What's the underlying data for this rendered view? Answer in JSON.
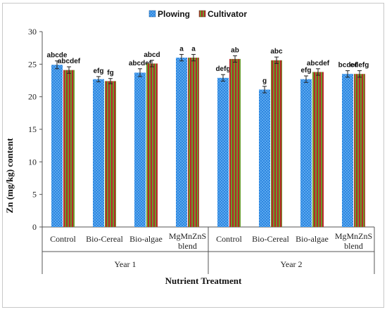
{
  "chart_data": {
    "type": "bar",
    "ylabel": "Zn (mg/kg) content",
    "xlabel": "Nutrient Treatment",
    "ylim": [
      0,
      30
    ],
    "yticks": [
      "0",
      "5",
      "10",
      "15",
      "20",
      "25",
      "30"
    ],
    "grid": false,
    "legend_position": "top",
    "groups": [
      {
        "name": "Year 1",
        "categories": [
          "Control",
          "Bio-Cereal",
          "Bio-algae",
          "MgMnZnS blend"
        ]
      },
      {
        "name": "Year 2",
        "categories": [
          "Control",
          "Bio-Cereal",
          "Bio-algae",
          "MgMnZnS blend"
        ]
      }
    ],
    "series": [
      {
        "name": "Plowing",
        "color": "#2e86de",
        "values": [
          24.9,
          22.7,
          23.7,
          26.0,
          22.9,
          21.1,
          22.7,
          23.5
        ],
        "errors": [
          0.6,
          0.4,
          0.6,
          0.5,
          0.5,
          0.5,
          0.5,
          0.5
        ],
        "labels": [
          "abcde",
          "efg",
          "abcdef",
          "a",
          "defg",
          "g",
          "efg",
          "bcdef"
        ]
      },
      {
        "name": "Cultivator",
        "color": "#8b5a2b",
        "values": [
          24.1,
          22.4,
          25.1,
          26.0,
          25.8,
          25.6,
          23.8,
          23.5
        ],
        "errors": [
          0.5,
          0.4,
          0.5,
          0.5,
          0.5,
          0.5,
          0.5,
          0.5
        ],
        "labels": [
          "abcdef",
          "fg",
          "abcd",
          "a",
          "ab",
          "abc",
          "abcdef",
          "cdefg"
        ]
      }
    ]
  }
}
